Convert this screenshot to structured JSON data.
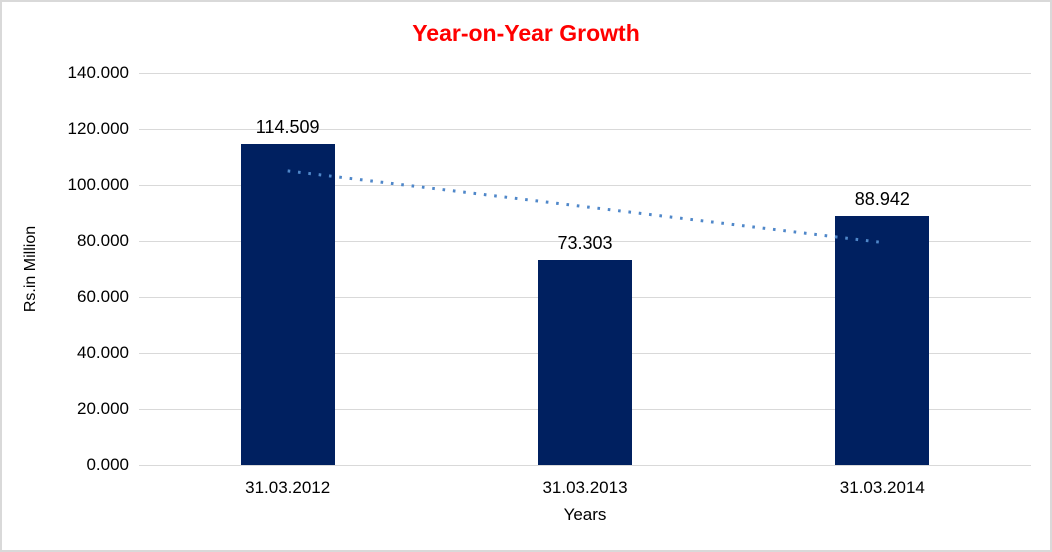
{
  "frame": {
    "background": "#ffffff",
    "border_color": "#d9d9d9"
  },
  "chart_data": {
    "type": "bar",
    "title": "Year-on-Year Growth",
    "title_color": "#ff0000",
    "categories": [
      "31.03.2012",
      "31.03.2013",
      "31.03.2014"
    ],
    "values": [
      114.509,
      73.303,
      88.942
    ],
    "data_labels": [
      "114.509",
      "73.303",
      "88.942"
    ],
    "xlabel": "Years",
    "ylabel": "Rs.in Million",
    "ylim": [
      0,
      140
    ],
    "yticks": [
      0,
      20,
      40,
      60,
      80,
      100,
      120,
      140
    ],
    "ytick_labels": [
      "0.000",
      "20.000",
      "40.000",
      "60.000",
      "80.000",
      "100.000",
      "120.000",
      "140.000"
    ],
    "grid": "horizontal-only",
    "gridline_color": "#d9d9d9",
    "legend": "none",
    "bar_color": "#002060",
    "text_color": "#000000",
    "trendline": {
      "type": "linear",
      "style": "dotted",
      "color": "#4f87c9",
      "start_value": 105.03,
      "end_value": 79.47
    }
  }
}
